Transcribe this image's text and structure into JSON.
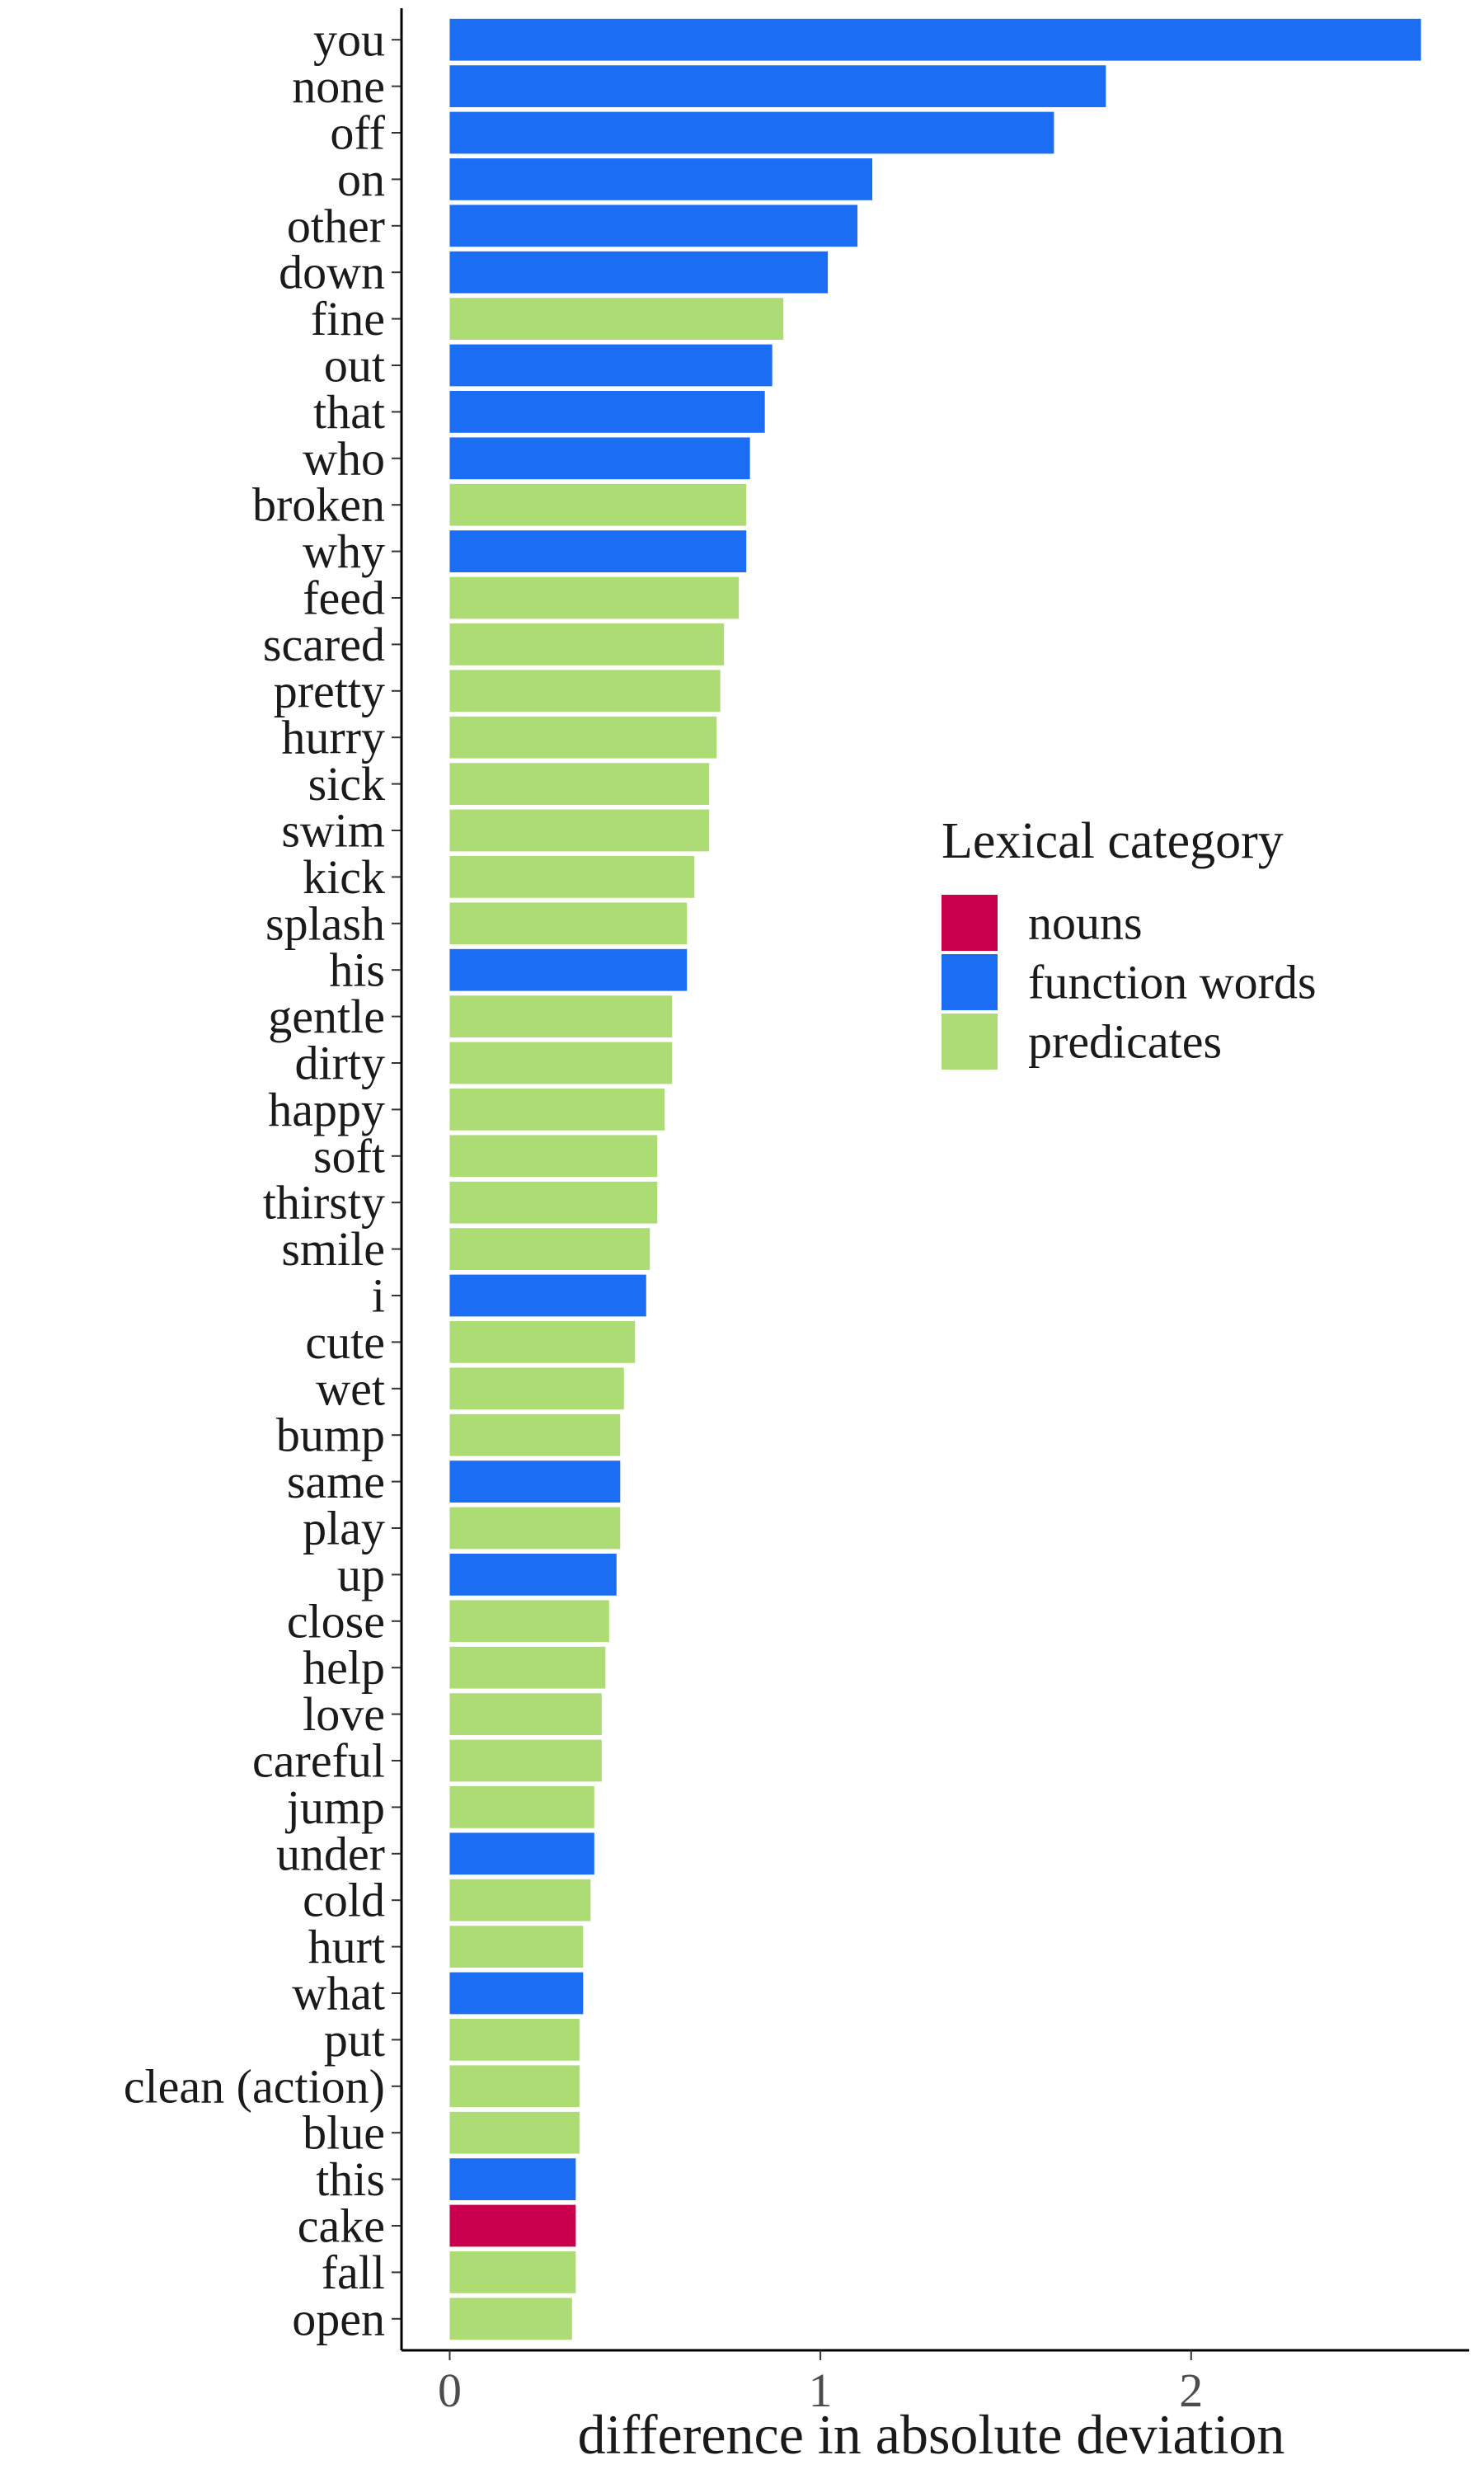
{
  "chart_data": {
    "type": "bar",
    "orientation": "horizontal",
    "xlabel": "difference in absolute deviation",
    "ylabel": "",
    "xlim": [
      -0.13,
      2.75
    ],
    "x_ticks": [
      "0",
      "1",
      "2"
    ],
    "x_tick_values": [
      0,
      1,
      2
    ],
    "grid": false,
    "legend": {
      "title": "Lexical category",
      "placement": "right",
      "entries": [
        {
          "key": "nouns",
          "label": "nouns",
          "color": "#C9004D"
        },
        {
          "key": "function",
          "label": "function words",
          "color": "#1B6EF3"
        },
        {
          "key": "predicates",
          "label": "predicates",
          "color": "#AEDC74"
        }
      ]
    },
    "categories": [
      "you",
      "none",
      "off",
      "on",
      "other",
      "down",
      "fine",
      "out",
      "that",
      "who",
      "broken",
      "why",
      "feed",
      "scared",
      "pretty",
      "hurry",
      "sick",
      "swim",
      "kick",
      "splash",
      "his",
      "gentle",
      "dirty",
      "happy",
      "soft",
      "thirsty",
      "smile",
      "i",
      "cute",
      "wet",
      "bump",
      "same",
      "play",
      "up",
      "close",
      "help",
      "love",
      "careful",
      "jump",
      "under",
      "cold",
      "hurt",
      "what",
      "put",
      "clean (action)",
      "blue",
      "this",
      "cake",
      "fall",
      "open"
    ],
    "values": [
      2.62,
      1.77,
      1.63,
      1.14,
      1.1,
      1.02,
      0.9,
      0.87,
      0.85,
      0.81,
      0.8,
      0.8,
      0.78,
      0.74,
      0.73,
      0.72,
      0.7,
      0.7,
      0.66,
      0.64,
      0.64,
      0.6,
      0.6,
      0.58,
      0.56,
      0.56,
      0.54,
      0.53,
      0.5,
      0.47,
      0.46,
      0.46,
      0.46,
      0.45,
      0.43,
      0.42,
      0.41,
      0.41,
      0.39,
      0.39,
      0.38,
      0.36,
      0.36,
      0.35,
      0.35,
      0.35,
      0.34,
      0.34,
      0.34,
      0.33
    ],
    "groups": [
      "function",
      "function",
      "function",
      "function",
      "function",
      "function",
      "predicates",
      "function",
      "function",
      "function",
      "predicates",
      "function",
      "predicates",
      "predicates",
      "predicates",
      "predicates",
      "predicates",
      "predicates",
      "predicates",
      "predicates",
      "function",
      "predicates",
      "predicates",
      "predicates",
      "predicates",
      "predicates",
      "predicates",
      "function",
      "predicates",
      "predicates",
      "predicates",
      "function",
      "predicates",
      "function",
      "predicates",
      "predicates",
      "predicates",
      "predicates",
      "predicates",
      "function",
      "predicates",
      "predicates",
      "function",
      "predicates",
      "predicates",
      "predicates",
      "function",
      "nouns",
      "predicates",
      "predicates"
    ]
  }
}
